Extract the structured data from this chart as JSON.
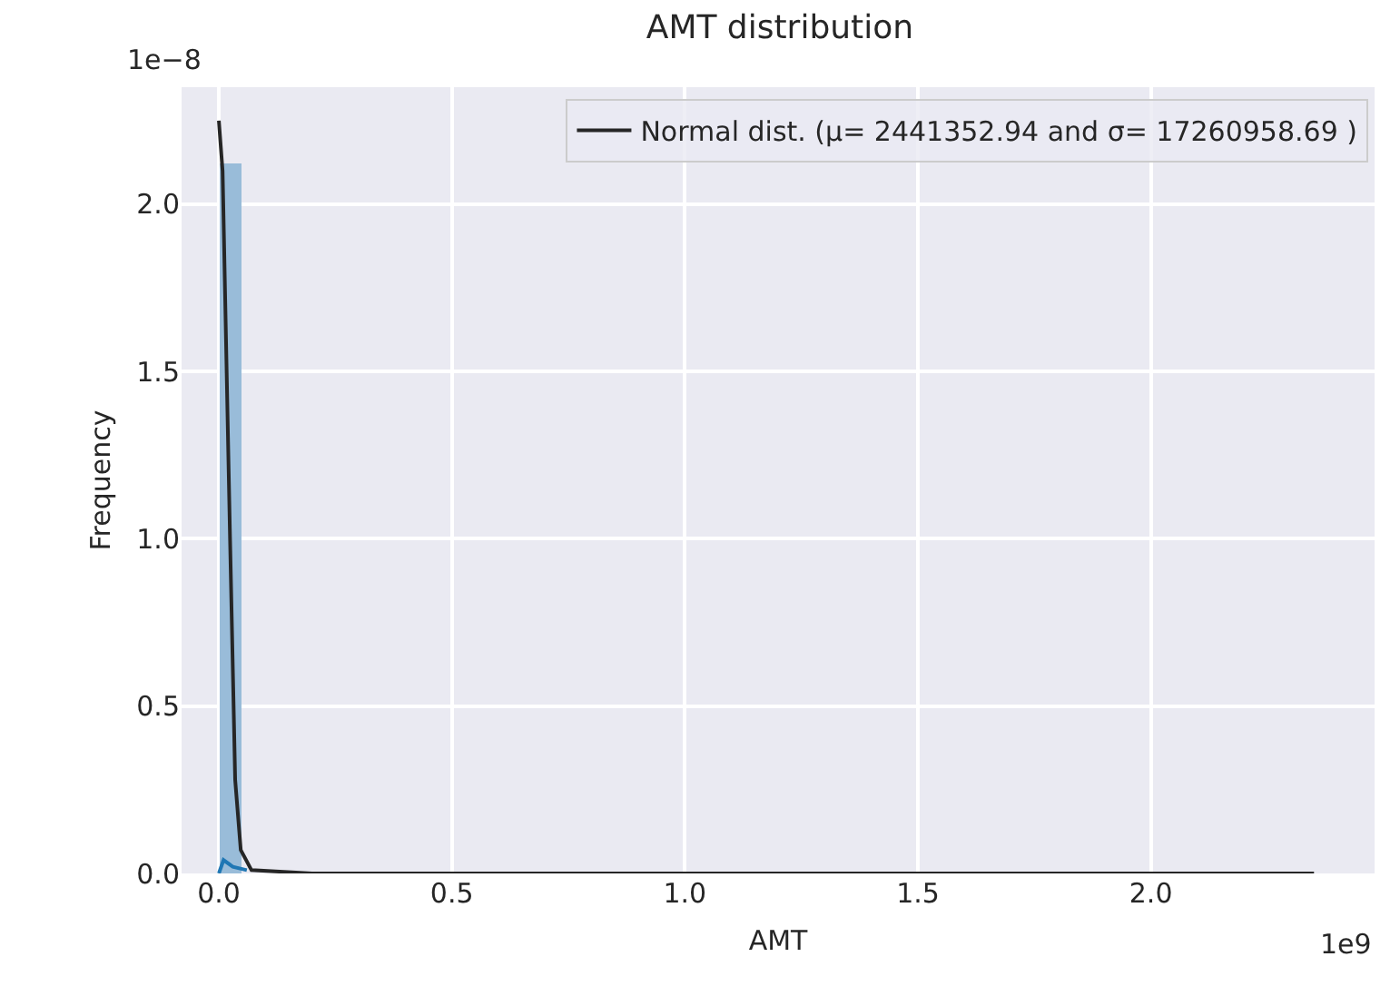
{
  "chart_data": {
    "type": "histogram",
    "title": "AMT distribution",
    "xlabel": "AMT",
    "ylabel": "Frequency",
    "annotations": [
      "1e−8",
      "1e9"
    ],
    "bins": [
      0,
      0.047,
      0.094,
      0.141,
      0.188,
      0.235,
      0.282,
      0.329,
      0.376,
      0.423,
      0.47,
      0.517,
      0.564,
      0.611,
      0.658,
      0.705,
      0.752,
      0.799,
      0.846,
      0.893,
      0.94,
      0.987,
      1.034,
      1.081,
      1.128,
      1.175,
      1.222,
      1.269,
      1.316,
      1.363,
      1.41,
      1.457,
      1.504,
      1.551,
      1.598,
      1.645,
      1.692,
      1.739,
      1.786,
      1.833,
      1.88,
      1.927,
      1.974,
      2.021,
      2.068,
      2.115,
      2.162,
      2.209,
      2.256,
      2.303,
      2.35
    ],
    "values": [
      2.12,
      0,
      0,
      0,
      0,
      0,
      0,
      0,
      0,
      0,
      0,
      0,
      0,
      0,
      0,
      0,
      0,
      0,
      0,
      0,
      0,
      0,
      0,
      0,
      0,
      0,
      0,
      0,
      0,
      0,
      0,
      0,
      0,
      0,
      0,
      0,
      0,
      0,
      0,
      0,
      0,
      0,
      0,
      0,
      0,
      0,
      0,
      0,
      0,
      0
    ],
    "color": "#99bcd9",
    "series": [
      {
        "type": "line",
        "color": "#1f77b4",
        "x": [
          0,
          0.01,
          0.03,
          0.06
        ],
        "values": [
          0,
          0.04,
          0.02,
          0.01
        ]
      },
      {
        "name": "Normal dist. (μ= 2441352.94 and σ= 17260958.69 )",
        "type": "line",
        "color": "#262626",
        "x": [
          0,
          0.008,
          0.024,
          0.035,
          0.047,
          0.07,
          0.2,
          2.35
        ],
        "values": [
          2.25,
          2.1,
          1.0,
          0.28,
          0.07,
          0.01,
          0,
          0
        ]
      }
    ],
    "xlim": [
      -0.08,
      2.48
    ],
    "xticks": [
      {
        "value": 0,
        "label": "0.0"
      },
      0.5,
      {
        "value": 1,
        "label": "1.0"
      },
      1.5,
      {
        "value": 2,
        "label": "2.0"
      }
    ],
    "ylim": [
      0,
      2.35
    ],
    "yticks": [
      {
        "value": 0,
        "label": "0.0"
      },
      0.5,
      {
        "value": 1,
        "label": "1.0"
      },
      1.5,
      {
        "value": 2,
        "label": "2.0"
      }
    ],
    "grid": true,
    "legend": "top right"
  }
}
